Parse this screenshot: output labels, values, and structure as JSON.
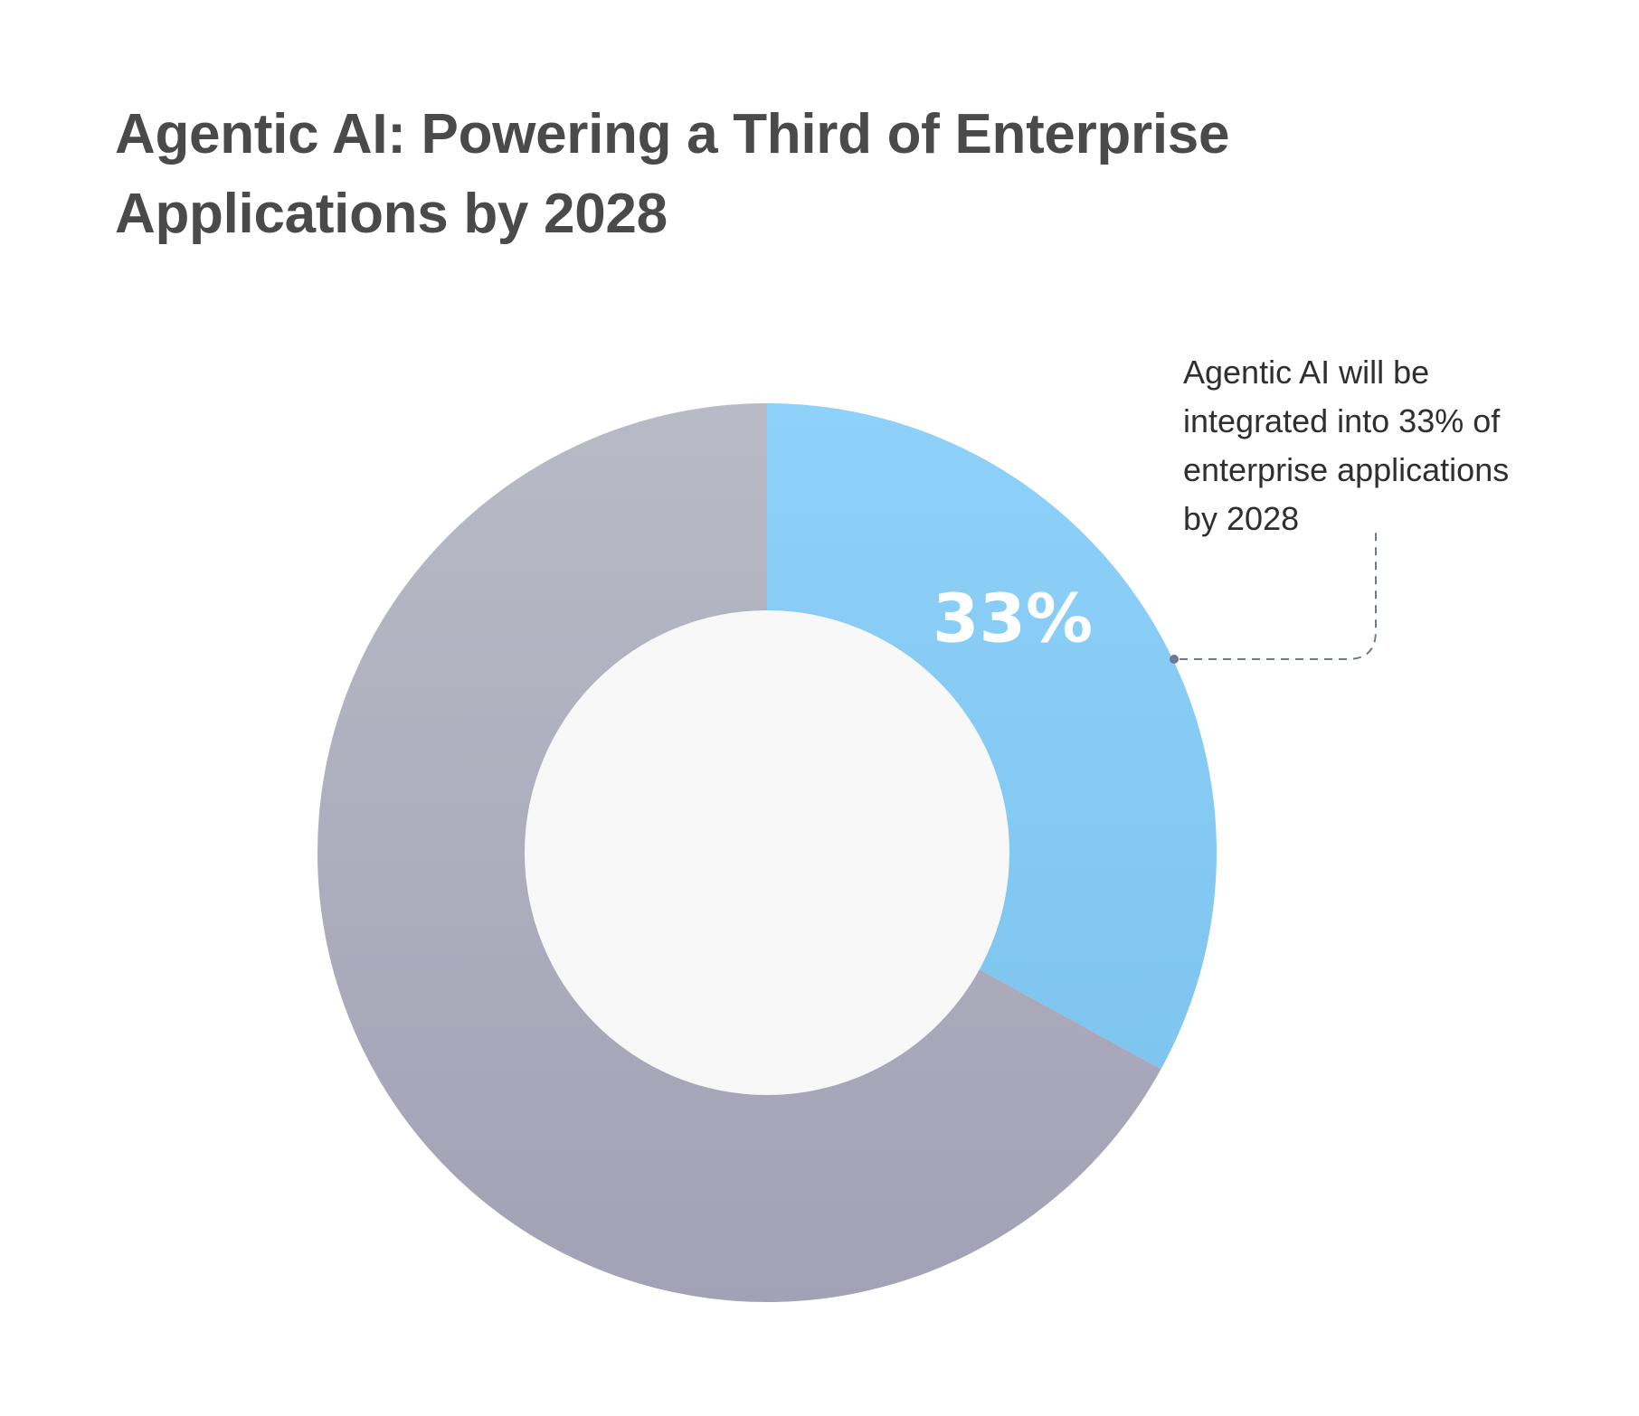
{
  "chart_data": {
    "type": "pie",
    "style": "donut",
    "title_lines": [
      "Agentic AI: Powering a Third of Enterprise",
      "Applications by 2028"
    ],
    "title": "Agentic AI: Powering a Third of Enterprise Applications by 2028",
    "slices": [
      {
        "value": 33,
        "label": "33%",
        "color_top": "#8ed1f9",
        "color_bottom": "#7ec5ef"
      },
      {
        "value": 67,
        "label": "",
        "color_top": "#b8bac6",
        "color_bottom": "#a3a1b5"
      }
    ],
    "center_color": "#f8f8f8",
    "annotation": {
      "lines": [
        "Agentic AI will be",
        "integrated into 33% of",
        "enterprise applications",
        "by 2028"
      ],
      "connector_color": "#6b7a8c"
    },
    "legend": "none"
  }
}
